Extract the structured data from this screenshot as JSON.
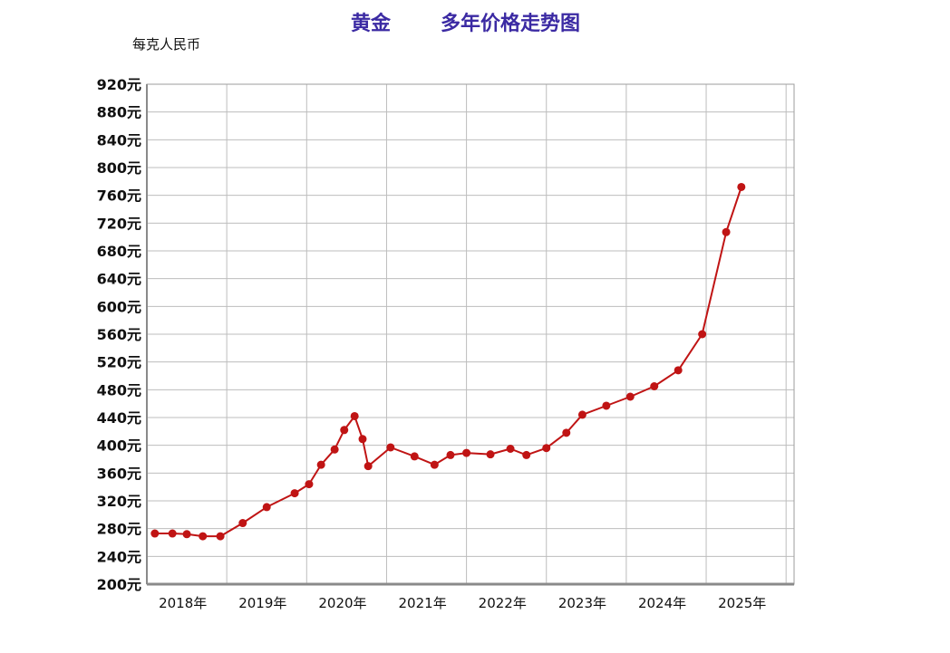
{
  "header": {
    "title_part1": "黄金",
    "title_part2": "多年价格走势图",
    "unit": "每克人民币"
  },
  "colors": {
    "title": "#3b2aa3",
    "line": "#c01414",
    "grid": "#bdbdbd"
  },
  "chart_data": {
    "type": "line",
    "title": "黄金　　多年价格走势图",
    "ylabel": "每克人民币",
    "xlabel": "",
    "ylim": [
      200,
      920
    ],
    "y_ticks": [
      200,
      240,
      280,
      320,
      360,
      400,
      440,
      480,
      520,
      560,
      600,
      640,
      680,
      720,
      760,
      800,
      840,
      880,
      920
    ],
    "y_tick_labels": [
      "200元",
      "240元",
      "280元",
      "320元",
      "360元",
      "400元",
      "440元",
      "480元",
      "520元",
      "560元",
      "600元",
      "640元",
      "680元",
      "720元",
      "760元",
      "800元",
      "840元",
      "880元",
      "920元"
    ],
    "x_tick_labels": [
      "2018年",
      "2019年",
      "2020年",
      "2021年",
      "2022年",
      "2023年",
      "2024年",
      "2025年"
    ],
    "xlim": [
      2017.9,
      2026.0
    ],
    "grid": true,
    "series": [
      {
        "x": [
          2018.0,
          2018.22,
          2018.4,
          2018.6,
          2018.82,
          2019.1,
          2019.4,
          2019.75,
          2019.93,
          2020.08,
          2020.25,
          2020.37,
          2020.5,
          2020.6,
          2020.67,
          2020.95,
          2021.25,
          2021.5,
          2021.7,
          2021.9,
          2022.2,
          2022.45,
          2022.65,
          2022.9,
          2023.15,
          2023.35,
          2023.65,
          2023.95,
          2024.25,
          2024.55,
          2024.85,
          2025.15,
          2025.34
        ],
        "y": [
          273,
          273,
          272,
          269,
          269,
          288,
          311,
          331,
          344,
          372,
          394,
          422,
          442,
          409,
          370,
          397,
          384,
          372,
          386,
          389,
          387,
          395,
          386,
          396,
          418,
          444,
          457,
          470,
          485,
          508,
          560,
          707,
          772
        ]
      }
    ]
  }
}
